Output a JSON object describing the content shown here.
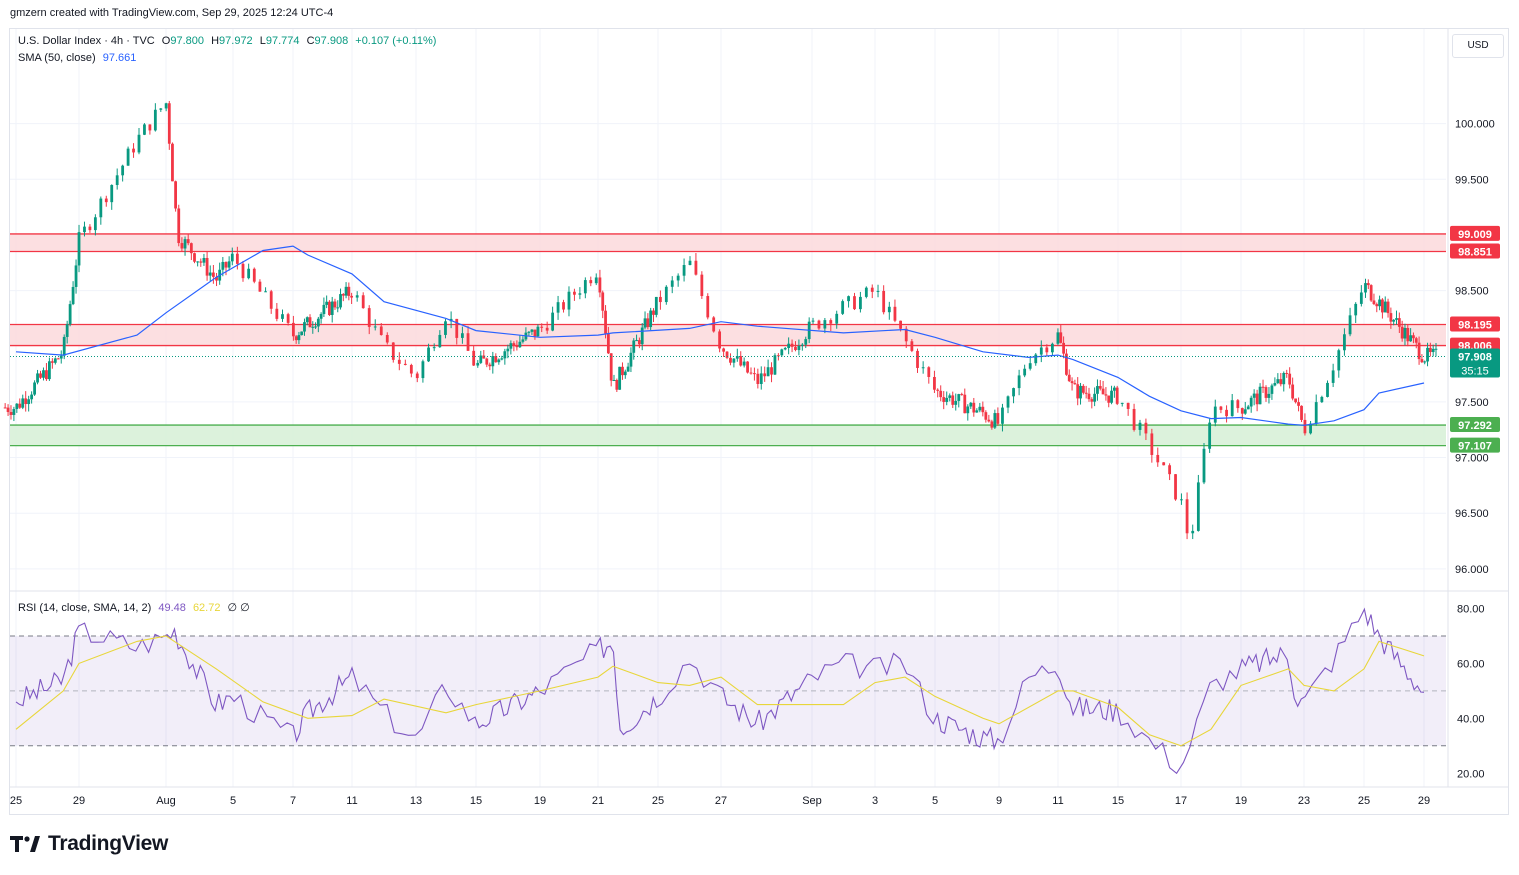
{
  "header": {
    "credit": "gmzern created with TradingView.com, Sep 29, 2025 12:24 UTC-4"
  },
  "legend": {
    "symbol": "U.S. Dollar Index · 4h · TVC",
    "open_label": "O",
    "open": "97.800",
    "high_label": "H",
    "high": "97.972",
    "low_label": "L",
    "low": "97.774",
    "close_label": "C",
    "close": "97.908",
    "change": "+0.107 (+0.11%)",
    "sma_label": "SMA (50, close)",
    "sma_value": "97.661",
    "rsi_label": "RSI (14, close, SMA, 14, 2)",
    "rsi_value": "49.48",
    "rsi_sma_value": "62.72",
    "rsi_extra": "∅ ∅"
  },
  "currency_button": "USD",
  "footer": {
    "brand": "TradingView"
  },
  "colors": {
    "up": "#089981",
    "down": "#f23645",
    "sma": "#2962ff",
    "rsi": "#7e57c2",
    "rsi_sma": "#e8d63a",
    "resistance_fill": "#fbd9dc",
    "resistance_line": "#f23645",
    "support_fill": "#d6f0d6",
    "support_line": "#4caf50",
    "current_price": "#089981"
  },
  "chart_data": [
    {
      "type": "candlestick",
      "title": "U.S. Dollar Index · 4h · TVC",
      "y_ticks": [
        "100.000",
        "99.500",
        "98.500",
        "97.500",
        "97.000",
        "96.500",
        "96.000"
      ],
      "y_tick_values": [
        100.0,
        99.5,
        98.5,
        97.5,
        97.0,
        96.5,
        96.0
      ],
      "ylim": [
        95.81,
        100.85
      ],
      "x_ticks": [
        "25",
        "29",
        "Aug",
        "5",
        "7",
        "11",
        "13",
        "15",
        "19",
        "21",
        "25",
        "27",
        "Sep",
        "3",
        "5",
        "9",
        "11",
        "15",
        "17",
        "19",
        "23",
        "25",
        "29"
      ],
      "resistance_zones": [
        {
          "top": 99.009,
          "bottom": 98.851,
          "top_label": "99.009",
          "bottom_label": "98.851"
        },
        {
          "top": 98.195,
          "bottom": 98.006,
          "top_label": "98.195",
          "bottom_label": "98.006"
        }
      ],
      "support_zones": [
        {
          "top": 97.292,
          "bottom": 97.107,
          "top_label": "97.292",
          "bottom_label": "97.107"
        }
      ],
      "current_price": {
        "value": 97.908,
        "label": "97.908",
        "countdown": "35:15"
      },
      "sma_50": {
        "name": "SMA (50, close)",
        "points": [
          [
            "Jul 25",
            97.95
          ],
          [
            "Jul 28",
            97.92
          ],
          [
            "Jul 31",
            98.1
          ],
          [
            "Aug 1",
            98.3
          ],
          [
            "Aug 4",
            98.62
          ],
          [
            "Aug 6",
            98.86
          ],
          [
            "Aug 7",
            98.9
          ],
          [
            "Aug 8",
            98.82
          ],
          [
            "Aug 11",
            98.65
          ],
          [
            "Aug 12",
            98.4
          ],
          [
            "Aug 14",
            98.25
          ],
          [
            "Aug 15",
            98.14
          ],
          [
            "Aug 19",
            98.08
          ],
          [
            "Aug 21",
            98.1
          ],
          [
            "Aug 22",
            98.12
          ],
          [
            "Aug 26",
            98.16
          ],
          [
            "Aug 27",
            98.22
          ],
          [
            "Aug 29",
            98.18
          ],
          [
            "Sep 2",
            98.12
          ],
          [
            "Sep 4",
            98.15
          ],
          [
            "Sep 5",
            98.08
          ],
          [
            "Sep 8",
            97.95
          ],
          [
            "Sep 10",
            97.9
          ],
          [
            "Sep 11",
            97.92
          ],
          [
            "Sep 12",
            97.88
          ],
          [
            "Sep 15",
            97.72
          ],
          [
            "Sep 16",
            97.55
          ],
          [
            "Sep 17",
            97.42
          ],
          [
            "Sep 18",
            97.35
          ],
          [
            "Sep 19",
            97.36
          ],
          [
            "Sep 22",
            97.3
          ],
          [
            "Sep 23",
            97.29
          ],
          [
            "Sep 24",
            97.33
          ],
          [
            "Sep 25",
            97.43
          ],
          [
            "Sep 26",
            97.58
          ],
          [
            "Sep 29",
            97.67
          ]
        ]
      },
      "ohlc_key_points": [
        [
          "Jul 25",
          97.45
        ],
        [
          "Jul 28",
          97.95
        ],
        [
          "Jul 29",
          98.95
        ],
        [
          "Jul 31",
          99.85
        ],
        [
          "Aug 1",
          100.2
        ],
        [
          "Aug 1 close",
          99.0
        ],
        [
          "Aug 4",
          98.6
        ],
        [
          "Aug 5",
          98.8
        ],
        [
          "Aug 7",
          98.1
        ],
        [
          "Aug 11",
          98.5
        ],
        [
          "Aug 12",
          98.0
        ],
        [
          "Aug 13",
          97.72
        ],
        [
          "Aug 14",
          98.3
        ],
        [
          "Aug 15",
          97.82
        ],
        [
          "Aug 19",
          98.15
        ],
        [
          "Aug 21",
          98.7
        ],
        [
          "Aug 22",
          97.62
        ],
        [
          "Aug 25",
          98.4
        ],
        [
          "Aug 26",
          98.75
        ],
        [
          "Aug 27",
          98.0
        ],
        [
          "Aug 29",
          97.68
        ],
        [
          "Sep 2",
          98.35
        ],
        [
          "Sep 3",
          98.5
        ],
        [
          "Sep 5",
          97.6
        ],
        [
          "Sep 8",
          97.4
        ],
        [
          "Sep 9",
          97.3
        ],
        [
          "Sep 10",
          97.9
        ],
        [
          "Sep 11",
          98.1
        ],
        [
          "Sep 12",
          97.6
        ],
        [
          "Sep 15",
          97.55
        ],
        [
          "Sep 16",
          97.1
        ],
        [
          "Sep 17",
          96.6
        ],
        [
          "Sep 17 low",
          96.22
        ],
        [
          "Sep 18",
          97.45
        ],
        [
          "Sep 19",
          97.45
        ],
        [
          "Sep 22",
          97.72
        ],
        [
          "Sep 23",
          97.25
        ],
        [
          "Sep 24",
          97.85
        ],
        [
          "Sep 25",
          98.55
        ],
        [
          "Sep 26",
          98.4
        ],
        [
          "Sep 29",
          97.908
        ]
      ]
    },
    {
      "type": "line",
      "title": "RSI (14, close, SMA, 14, 2)",
      "y_ticks": [
        "80.00",
        "60.00",
        "40.00",
        "20.00"
      ],
      "y_tick_values": [
        80,
        60,
        40,
        20
      ],
      "ylim": [
        15,
        86
      ],
      "bands": {
        "upper": 70,
        "middle": 50,
        "lower": 30
      },
      "series": [
        {
          "name": "RSI",
          "points": [
            [
              "Jul 25",
              46
            ],
            [
              "Jul 28",
              54
            ],
            [
              "Jul 29",
              72
            ],
            [
              "Jul 31",
              66
            ],
            [
              "Aug 1",
              70
            ],
            [
              "Aug 1b",
              72
            ],
            [
              "Aug 4",
              45
            ],
            [
              "Aug 5",
              48
            ],
            [
              "Aug 6",
              40
            ],
            [
              "Aug 7",
              33
            ],
            [
              "Aug 8",
              42
            ],
            [
              "Aug 11",
              55
            ],
            [
              "Aug 12",
              42
            ],
            [
              "Aug 13",
              32
            ],
            [
              "Aug 14",
              52
            ],
            [
              "Aug 15",
              38
            ],
            [
              "Aug 19",
              50
            ],
            [
              "Aug 21",
              65
            ],
            [
              "Aug 22",
              68
            ],
            [
              "Aug 22b",
              36
            ],
            [
              "Aug 25",
              48
            ],
            [
              "Aug 26",
              62
            ],
            [
              "Aug 27",
              48
            ],
            [
              "Aug 29",
              38
            ],
            [
              "Sep 2",
              60
            ],
            [
              "Sep 3",
              58
            ],
            [
              "Sep 4",
              60
            ],
            [
              "Sep 5",
              40
            ],
            [
              "Sep 8",
              33
            ],
            [
              "Sep 9",
              32
            ],
            [
              "Sep 10",
              55
            ],
            [
              "Sep 11",
              60
            ],
            [
              "Sep 12",
              44
            ],
            [
              "Sep 15",
              43
            ],
            [
              "Sep 16",
              32
            ],
            [
              "Sep 17",
              22
            ],
            [
              "Sep 18",
              52
            ],
            [
              "Sep 19",
              58
            ],
            [
              "Sep 22",
              64
            ],
            [
              "Sep 22b",
              47
            ],
            [
              "Sep 23",
              46
            ],
            [
              "Sep 24",
              62
            ],
            [
              "Sep 25",
              80
            ],
            [
              "Sep 26",
              70
            ],
            [
              "Sep 29",
              49.48
            ]
          ]
        },
        {
          "name": "RSI-based MA",
          "points": [
            [
              "Jul 25",
              36
            ],
            [
              "Jul 28",
              50
            ],
            [
              "Jul 29",
              60
            ],
            [
              "Jul 31",
              68
            ],
            [
              "Aug 1",
              70
            ],
            [
              "Aug 4",
              58
            ],
            [
              "Aug 6",
              46
            ],
            [
              "Aug 8",
              40
            ],
            [
              "Aug 11",
              41
            ],
            [
              "Aug 12",
              47
            ],
            [
              "Aug 14",
              42
            ],
            [
              "Aug 15",
              45
            ],
            [
              "Aug 19",
              50
            ],
            [
              "Aug 21",
              55
            ],
            [
              "Aug 22",
              59
            ],
            [
              "Aug 25",
              53
            ],
            [
              "Aug 26",
              52
            ],
            [
              "Aug 27",
              55
            ],
            [
              "Aug 29",
              45
            ],
            [
              "Sep 2",
              45
            ],
            [
              "Sep 3",
              53
            ],
            [
              "Sep 4",
              55
            ],
            [
              "Sep 5",
              48
            ],
            [
              "Sep 8",
              40
            ],
            [
              "Sep 9",
              38
            ],
            [
              "Sep 11",
              50
            ],
            [
              "Sep 12",
              50
            ],
            [
              "Sep 15",
              44
            ],
            [
              "Sep 16",
              34
            ],
            [
              "Sep 17",
              30
            ],
            [
              "Sep 18",
              36
            ],
            [
              "Sep 19",
              52
            ],
            [
              "Sep 22",
              58
            ],
            [
              "Sep 23",
              52
            ],
            [
              "Sep 24",
              50
            ],
            [
              "Sep 25",
              58
            ],
            [
              "Sep 26",
              68
            ],
            [
              "Sep 29",
              62.72
            ]
          ]
        }
      ]
    }
  ]
}
